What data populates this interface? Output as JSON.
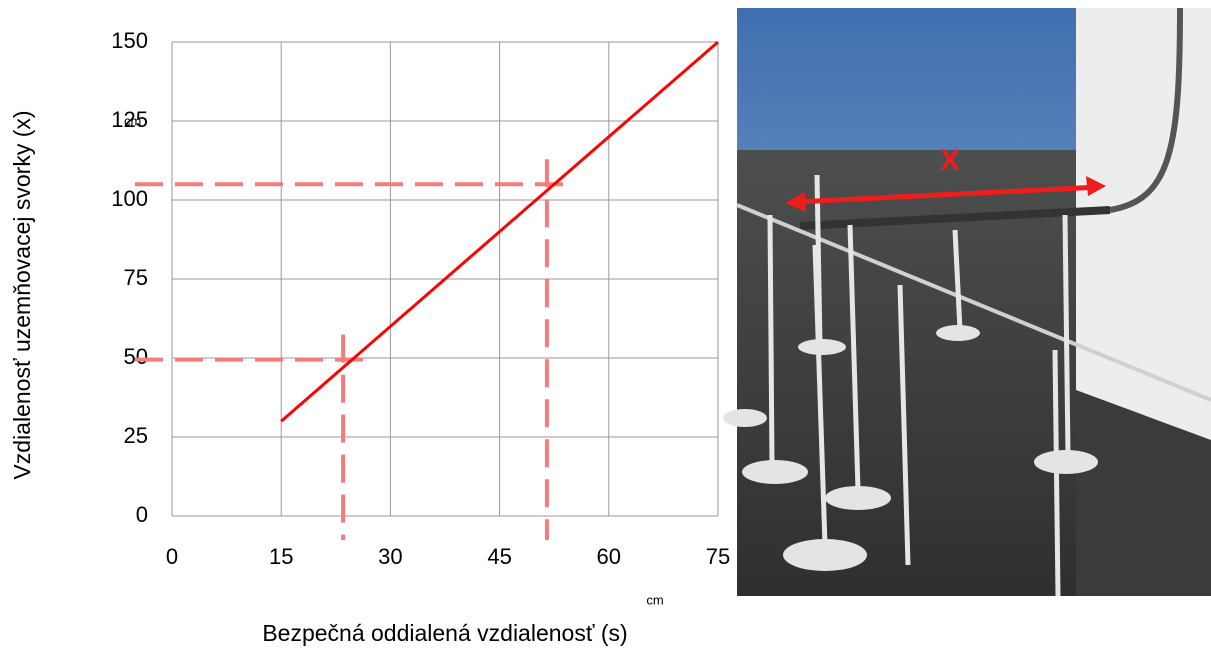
{
  "chart_data": {
    "type": "line",
    "ylabel": "Vzdialenosť uzemňovacej svorky (x)",
    "xlabel": "Bezpečná oddialená vzdialenosť (s)",
    "x_unit": "cm",
    "y_unit": "cm",
    "series": [
      {
        "color": "#ff0000",
        "x": [
          15,
          75
        ],
        "values": [
          30,
          150
        ]
      }
    ],
    "reference_lines": [
      {
        "x": 23.5,
        "y": 49.5,
        "color": "#f47c7c"
      },
      {
        "x": 51.5,
        "y": 105,
        "color": "#f47c7c"
      }
    ],
    "xlim": [
      0,
      75
    ],
    "ylim": [
      0,
      150
    ],
    "xticks": [
      0,
      15,
      30,
      45,
      60,
      75
    ],
    "yticks": [
      0,
      25,
      50,
      75,
      100,
      125,
      150
    ],
    "grid": true
  },
  "photo": {
    "label": "X"
  }
}
